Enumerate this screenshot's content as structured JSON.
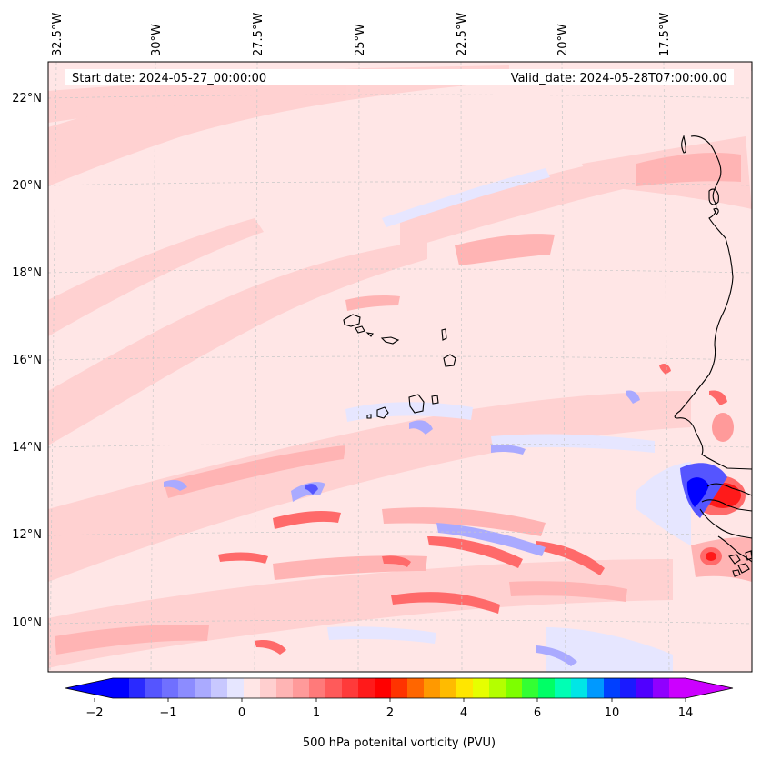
{
  "header": {
    "start_date": "Start date: 2024-05-27_00:00:00",
    "valid_date": "Valid_date: 2024-05-28T07:00:00.00"
  },
  "grid": {
    "longitude_labels": [
      "32.5°W",
      "30°W",
      "27.5°W",
      "25°W",
      "22.5°W",
      "20°W",
      "17.5°W"
    ],
    "latitude_labels": [
      "22°N",
      "20°N",
      "18°N",
      "16°N",
      "14°N",
      "12°N",
      "10°N"
    ]
  },
  "colorbar": {
    "tick_labels": [
      "−2",
      "−1",
      "0",
      "1",
      "2",
      "4",
      "6",
      "10",
      "14"
    ],
    "label": "500 hPa potenital vorticity (PVU)",
    "colors": [
      "#0000ff",
      "#2a2aff",
      "#5555ff",
      "#7070ff",
      "#8c8cff",
      "#aaaaff",
      "#c8c8ff",
      "#e6e6ff",
      "#ffe6e6",
      "#ffcfcf",
      "#ffb4b4",
      "#ff9a9a",
      "#ff7a7a",
      "#ff5a5a",
      "#ff3a3a",
      "#ff1a1a",
      "#ff0000",
      "#ff3300",
      "#ff6600",
      "#ff9900",
      "#ffbb00",
      "#ffe600",
      "#e6ff00",
      "#b4ff00",
      "#7dff00",
      "#33ff33",
      "#00ff66",
      "#00ffb4",
      "#00e6e6",
      "#0099ff",
      "#0040ff",
      "#1a1aff",
      "#5000ff",
      "#9000ff",
      "#cc00ff"
    ]
  },
  "colors": {
    "field_background": "#ffe6e6",
    "positive_weak": "#ffcfcf",
    "positive_mid": "#ffb4b4",
    "positive_strong": "#ff6a6a",
    "positive_peak": "#ff1a1a",
    "negative_weak": "#e6e6ff",
    "negative_mid": "#aaaaff",
    "negative_strong": "#5555ff",
    "negative_peak": "#0000ff",
    "coastline": "#000000"
  }
}
